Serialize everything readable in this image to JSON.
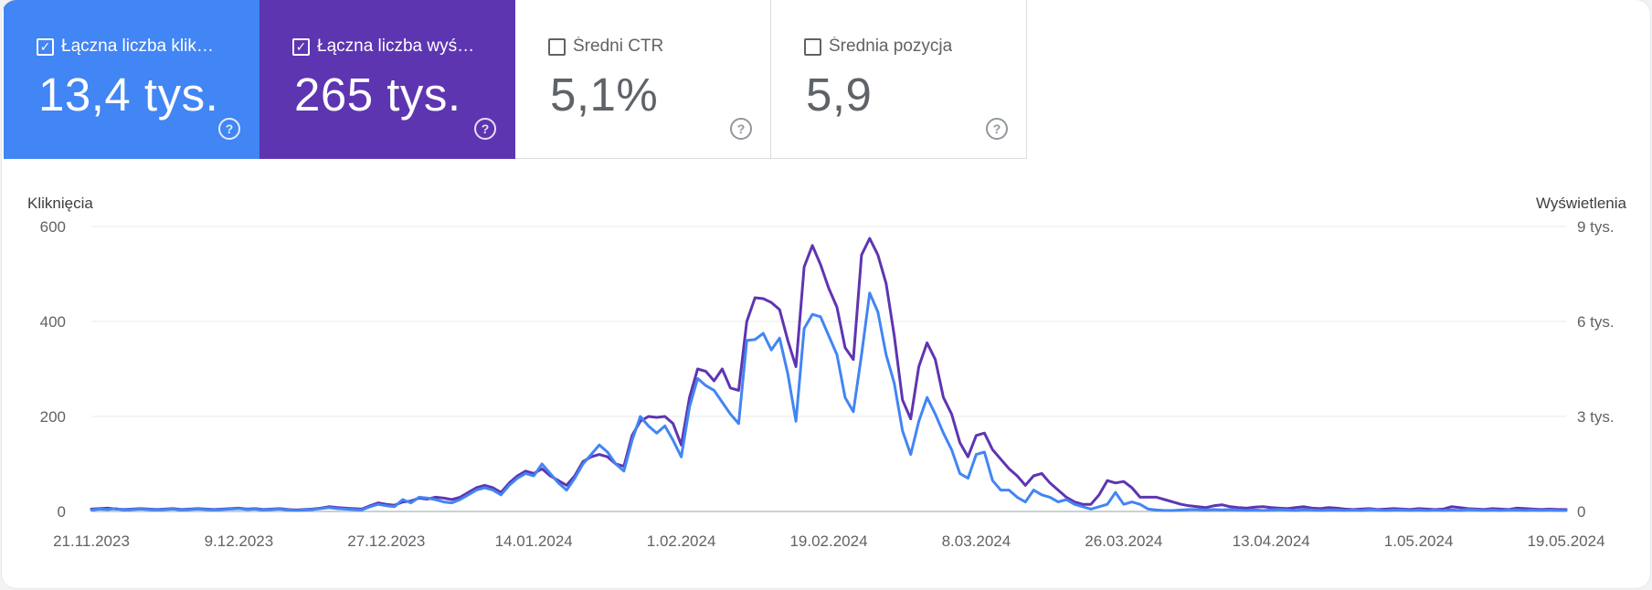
{
  "metrics": [
    {
      "label": "Łączna liczba klik…",
      "value": "13,4 tys.",
      "checked": true,
      "color": "#4285f4"
    },
    {
      "label": "Łączna liczba wyś…",
      "value": "265 tys.",
      "checked": true,
      "color": "#5e35b1"
    },
    {
      "label": "Średni CTR",
      "value": "5,1%",
      "checked": false
    },
    {
      "label": "Średnia pozycja",
      "value": "5,9",
      "checked": false
    }
  ],
  "help_icon": "help-circle-icon",
  "chart_data": {
    "type": "line",
    "y_left_label": "Kliknięcia",
    "y_right_label": "Wyświetlenia",
    "y_left_ticks": [
      "600",
      "400",
      "200",
      "0"
    ],
    "y_right_ticks": [
      "9 tys.",
      "6 tys.",
      "3 tys.",
      "0"
    ],
    "y_left_range": [
      0,
      600
    ],
    "y_right_range": [
      0,
      9000
    ],
    "x_labels": [
      "21.11.2023",
      "9.12.2023",
      "27.12.2023",
      "14.01.2024",
      "1.02.2024",
      "19.02.2024",
      "8.03.2024",
      "26.03.2024",
      "13.04.2024",
      "1.05.2024",
      "19.05.2024"
    ],
    "x_range": [
      0,
      180
    ],
    "grid": true,
    "series": [
      {
        "axis": "left",
        "color": "#4285f4",
        "values": [
          3,
          5,
          4,
          6,
          3,
          4,
          5,
          4,
          3,
          4,
          5,
          3,
          4,
          5,
          4,
          3,
          4,
          5,
          6,
          4,
          5,
          3,
          4,
          5,
          3,
          2,
          3,
          4,
          6,
          8,
          6,
          5,
          4,
          3,
          10,
          15,
          12,
          10,
          25,
          18,
          30,
          28,
          25,
          20,
          18,
          25,
          35,
          45,
          50,
          45,
          35,
          55,
          70,
          80,
          75,
          100,
          80,
          60,
          45,
          70,
          100,
          120,
          140,
          125,
          100,
          85,
          150,
          200,
          180,
          165,
          180,
          150,
          115,
          220,
          280,
          265,
          255,
          230,
          205,
          185,
          360,
          362,
          375,
          340,
          365,
          290,
          190,
          385,
          415,
          410,
          370,
          330,
          240,
          210,
          330,
          460,
          420,
          330,
          270,
          170,
          120,
          190,
          240,
          205,
          165,
          130,
          80,
          70,
          120,
          125,
          65,
          45,
          45,
          30,
          20,
          45,
          35,
          30,
          20,
          25,
          15,
          10,
          5,
          10,
          15,
          40,
          15,
          20,
          15,
          5,
          3,
          2,
          2,
          3,
          4,
          4,
          3,
          4,
          3,
          4,
          3,
          2,
          3,
          2,
          3,
          4,
          3,
          2,
          4,
          3,
          2,
          3,
          3,
          2,
          3,
          2,
          4,
          3,
          2,
          3,
          3,
          2,
          3,
          2,
          3,
          2,
          3,
          2,
          4,
          3,
          2,
          3,
          2,
          3,
          3,
          2,
          3,
          2,
          3,
          2,
          2
        ]
      },
      {
        "axis": "left",
        "color": "#5e35b1",
        "values": [
          5,
          6,
          7,
          5,
          4,
          5,
          6,
          5,
          4,
          5,
          6,
          4,
          5,
          6,
          5,
          4,
          5,
          6,
          7,
          5,
          6,
          4,
          5,
          6,
          4,
          3,
          4,
          5,
          7,
          10,
          8,
          7,
          6,
          5,
          12,
          18,
          15,
          13,
          20,
          22,
          28,
          26,
          30,
          28,
          25,
          30,
          40,
          50,
          55,
          50,
          40,
          60,
          75,
          85,
          80,
          90,
          75,
          65,
          55,
          75,
          105,
          115,
          120,
          115,
          100,
          95,
          160,
          190,
          200,
          198,
          200,
          185,
          140,
          240,
          300,
          295,
          275,
          300,
          260,
          255,
          400,
          450,
          448,
          440,
          425,
          360,
          305,
          515,
          560,
          520,
          470,
          430,
          345,
          320,
          540,
          575,
          540,
          480,
          370,
          235,
          195,
          305,
          355,
          320,
          240,
          205,
          145,
          115,
          160,
          165,
          130,
          110,
          90,
          75,
          55,
          75,
          80,
          60,
          45,
          30,
          20,
          15,
          15,
          35,
          65,
          60,
          63,
          50,
          30,
          30,
          30,
          25,
          20,
          15,
          12,
          10,
          8,
          12,
          14,
          10,
          8,
          7,
          9,
          10,
          8,
          7,
          6,
          8,
          10,
          7,
          6,
          8,
          7,
          5,
          4,
          5,
          6,
          4,
          5,
          6,
          5,
          4,
          6,
          5,
          4,
          5,
          10,
          8,
          6,
          5,
          4,
          6,
          5,
          4,
          7,
          6,
          5,
          4,
          5,
          4,
          4
        ]
      }
    ]
  }
}
